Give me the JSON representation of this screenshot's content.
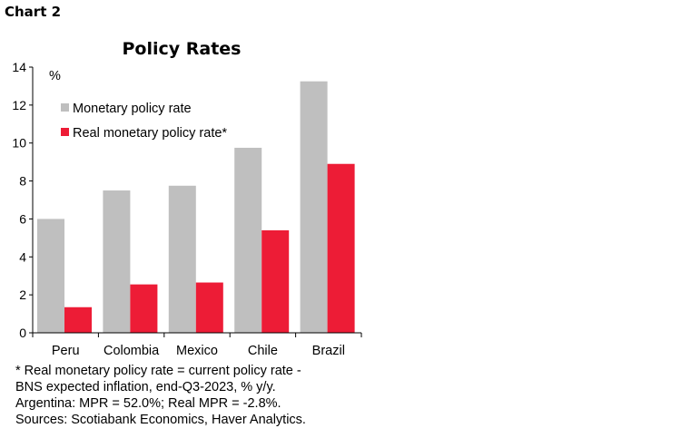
{
  "header": {
    "chart_number": "Chart 2"
  },
  "chart_data": {
    "type": "bar",
    "title": "Policy Rates",
    "ylabel": "%",
    "xlabel": "",
    "categories": [
      "Peru",
      "Colombia",
      "Mexico",
      "Chile",
      "Brazil"
    ],
    "series": [
      {
        "name": "Monetary policy rate",
        "color": "#bfbfbf",
        "values": [
          6.0,
          7.5,
          7.75,
          9.75,
          13.25
        ]
      },
      {
        "name": "Real monetary policy rate*",
        "color": "#ed1c36",
        "values": [
          1.35,
          2.55,
          2.65,
          5.4,
          8.9
        ]
      }
    ],
    "ylim": [
      0,
      14
    ],
    "yticks": [
      "0",
      "2",
      "4",
      "6",
      "8",
      "10",
      "12",
      "14"
    ],
    "grid": false,
    "legend_position": "top-left"
  },
  "footnotes": [
    "* Real monetary policy rate = current policy rate -",
    "BNS expected inflation, end-Q3-2023, % y/y.",
    "Argentina: MPR = 52.0%; Real MPR = -2.8%.",
    "Sources: Scotiabank Economics, Haver Analytics."
  ]
}
